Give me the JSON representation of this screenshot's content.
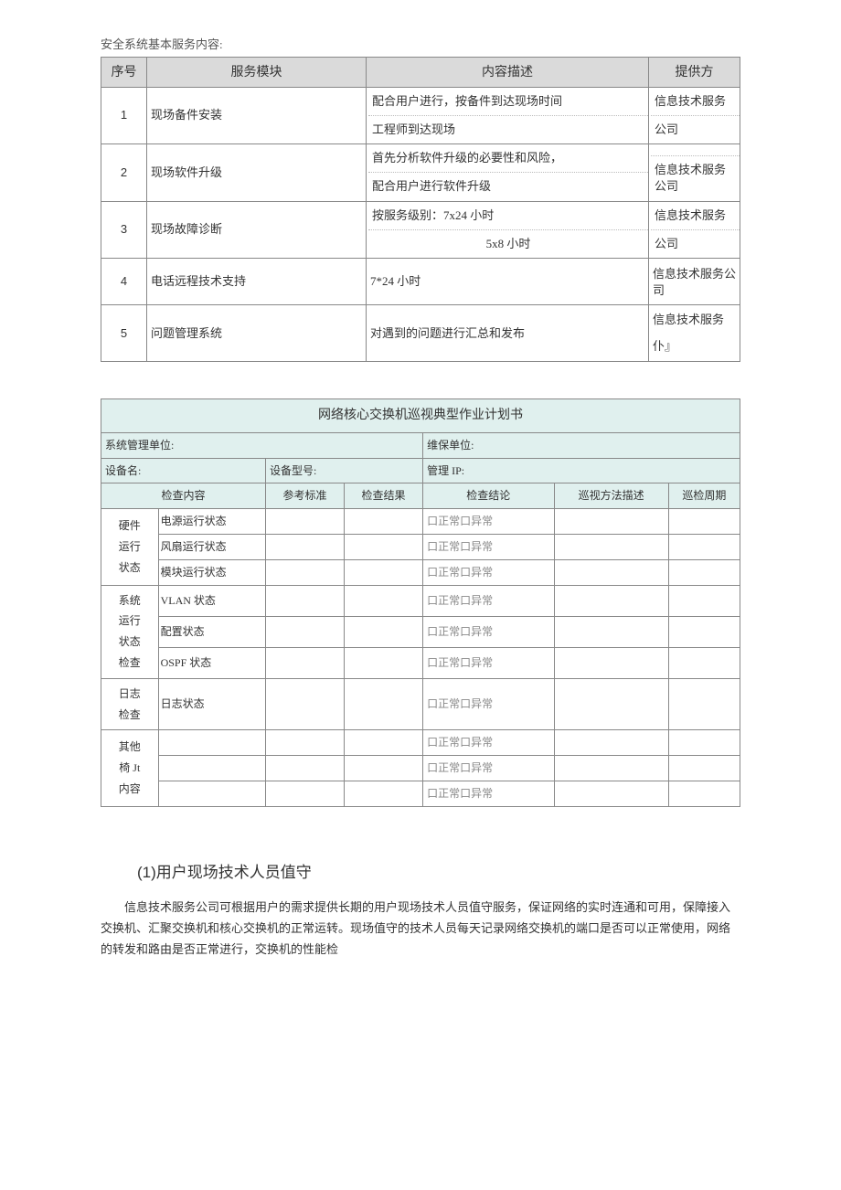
{
  "intro": "安全系统基本服务内容:",
  "table1": {
    "headers": [
      "序号",
      "服务模块",
      "内容描述",
      "提供方"
    ],
    "rows": [
      {
        "num": "1",
        "module": "现场备件安装",
        "desc_lines": [
          "配合用户进行，按备件到达现场时间",
          "工程师到达现场"
        ],
        "prov_lines": [
          "信息技术服务",
          "公司"
        ]
      },
      {
        "num": "2",
        "module": "现场软件升级",
        "desc_lines": [
          "首先分析软件升级的必要性和风险，",
          "配合用户进行软件升级"
        ],
        "prov_lines": [
          "",
          "信息技术服务公司"
        ]
      },
      {
        "num": "3",
        "module": "现场故障诊断",
        "desc_lines": [
          "按服务级别：7x24 小时",
          "5x8 小时"
        ],
        "prov_lines": [
          "信息技术服务",
          "公司"
        ]
      },
      {
        "num": "4",
        "module": "电话远程技术支持",
        "desc": "7*24 小时",
        "prov": "信息技术服务公司"
      },
      {
        "num": "5",
        "module": "问题管理系统",
        "desc": "对遇到的问题进行汇总和发布",
        "prov_lines": [
          "信息技术服务",
          "仆』"
        ]
      }
    ]
  },
  "table2": {
    "title": "网络核心交换机巡视典型作业计划书",
    "meta": {
      "org_label": "系统管理单位:",
      "maint_label": "维保单位:",
      "dev_label": "设备名:",
      "model_label": "设备型号:",
      "ip_label": "管理 IP:"
    },
    "cols": [
      "检查内容",
      "参考标准",
      "检查结果",
      "检查结论",
      "巡视方法描述",
      "巡检周期"
    ],
    "groups": [
      {
        "cat_lines": [
          "硬件",
          "运行",
          "状态"
        ],
        "items": [
          "电源运行状态",
          "风扇运行状态",
          "模块运行状态"
        ]
      },
      {
        "cat_lines": [
          "系统",
          "运行",
          "状态",
          "检查"
        ],
        "items": [
          "VLAN 状态",
          "配置状态",
          "OSPF 状态"
        ]
      },
      {
        "cat_lines": [
          "日志",
          "检查"
        ],
        "items": [
          "日志状态"
        ]
      },
      {
        "cat_lines": [
          "其他",
          "椅 Jt",
          "内容"
        ],
        "items": [
          "",
          "",
          ""
        ]
      }
    ],
    "conclusion_text": "口正常口异常"
  },
  "section": {
    "heading": "(1)用户现场技术人员值守",
    "para": "信息技术服务公司可根据用户的需求提供长期的用户现场技术人员值守服务，保证网络的实时连通和可用，保障接入交换机、汇聚交换机和核心交换机的正常运转。现场值守的技术人员每天记录网络交换机的端口是否可以正常使用，网络的转发和路由是否正常进行，交换机的性能检"
  }
}
